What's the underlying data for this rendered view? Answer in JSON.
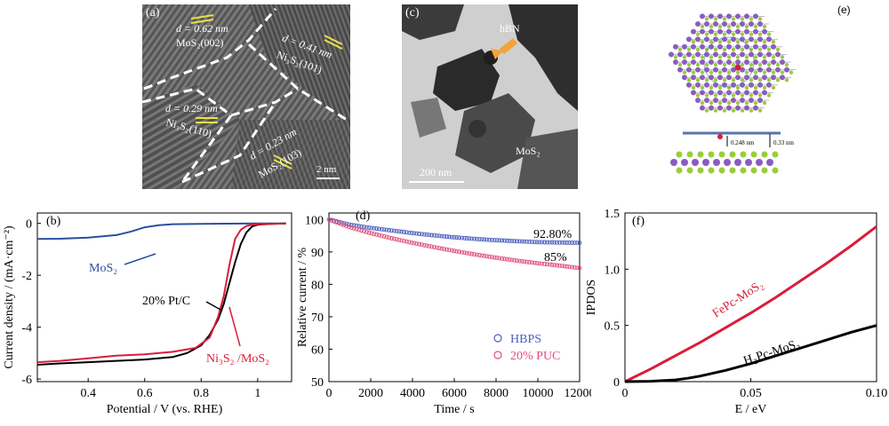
{
  "panels": {
    "a": {
      "label": "(a)"
    },
    "b": {
      "label": "(b)"
    },
    "c": {
      "label": "(c)"
    },
    "d": {
      "label": "(d)"
    },
    "e": {
      "label": "(e)"
    },
    "f": {
      "label": "(f)"
    }
  },
  "tem_a": {
    "annotations": [
      {
        "d": "d = 0.62 nm",
        "phase": "MoS₂(002)"
      },
      {
        "d": "d = 0.41 nm",
        "phase": "Ni₃S₂(101)"
      },
      {
        "d": "d = 0.29 nm",
        "phase": "Ni₃S₂(110)"
      },
      {
        "d": "d = 0.23 nm",
        "phase": "MoS₂(103)"
      }
    ],
    "scalebar": "2 nm"
  },
  "tem_c": {
    "arrow_label": "hBN",
    "region_label": "MoS₂",
    "scalebar": "200 nm"
  },
  "structure_e": {
    "dist1": "0.248 nm",
    "dist2": "0.33 nm"
  },
  "colors": {
    "blue": "#2b4fa0",
    "red": "#d81e3a",
    "black": "#000000",
    "hbps": "#4a5fbf",
    "puc": "#e0507a",
    "fepc": "#d81e3a",
    "h2pc": "#000000",
    "mo": "#8a5cc2",
    "s": "#9ccc3a",
    "arrow": "#f2a33a"
  },
  "chart_data": [
    {
      "id": "b",
      "type": "line",
      "xlabel": "Potential / V (vs. RHE)",
      "ylabel": "Current density / (mA·cm⁻²)",
      "xlim": [
        0.22,
        1.12
      ],
      "ylim": [
        -6.1,
        0.4
      ],
      "xticks": [
        0.4,
        0.6,
        0.8,
        1.0
      ],
      "yticks": [
        0,
        -2,
        -4,
        -6
      ],
      "series": [
        {
          "name": "MoS₂",
          "color": "blue",
          "x": [
            0.22,
            0.3,
            0.4,
            0.5,
            0.55,
            0.6,
            0.65,
            0.7,
            0.8,
            0.9,
            1.0,
            1.1
          ],
          "y": [
            -0.6,
            -0.59,
            -0.55,
            -0.45,
            -0.32,
            -0.15,
            -0.07,
            -0.03,
            -0.02,
            -0.01,
            0,
            0
          ]
        },
        {
          "name": "20% Pt/C",
          "color": "black",
          "x": [
            0.22,
            0.3,
            0.4,
            0.5,
            0.6,
            0.7,
            0.75,
            0.8,
            0.83,
            0.86,
            0.88,
            0.9,
            0.92,
            0.94,
            0.96,
            0.98,
            1.0,
            1.05,
            1.1
          ],
          "y": [
            -5.45,
            -5.4,
            -5.35,
            -5.3,
            -5.25,
            -5.15,
            -5.0,
            -4.7,
            -4.3,
            -3.7,
            -3.1,
            -2.3,
            -1.5,
            -0.8,
            -0.35,
            -0.12,
            -0.05,
            -0.02,
            0
          ]
        },
        {
          "name": "Ni₃S₂ /MoS₂",
          "color": "red",
          "x": [
            0.22,
            0.3,
            0.4,
            0.5,
            0.6,
            0.7,
            0.78,
            0.83,
            0.86,
            0.88,
            0.9,
            0.92,
            0.94,
            0.96,
            0.98,
            1.0,
            1.05,
            1.1
          ],
          "y": [
            -5.35,
            -5.3,
            -5.2,
            -5.1,
            -5.05,
            -4.95,
            -4.8,
            -4.4,
            -3.6,
            -2.8,
            -1.6,
            -0.6,
            -0.25,
            -0.1,
            -0.05,
            -0.03,
            -0.02,
            0
          ]
        }
      ],
      "annotations": [
        {
          "text": "MoS₂",
          "series": "blue"
        },
        {
          "text": "20% Pt/C",
          "series": "black"
        },
        {
          "text": "Ni₃S₂ /MoS₂",
          "series": "red"
        }
      ]
    },
    {
      "id": "d",
      "type": "scatter",
      "xlabel": "Time / s",
      "ylabel": "Relative current / %",
      "xlim": [
        0,
        12000
      ],
      "ylim": [
        50,
        102
      ],
      "xticks": [
        0,
        2000,
        4000,
        6000,
        8000,
        10000,
        12000
      ],
      "yticks": [
        50,
        60,
        70,
        80,
        90,
        100
      ],
      "series": [
        {
          "name": "HBPS",
          "color": "hbps",
          "x": [
            0,
            1000,
            2000,
            3000,
            4000,
            5000,
            6000,
            7000,
            8000,
            9000,
            10000,
            11000,
            12000
          ],
          "y": [
            100,
            98.4,
            97.4,
            96.6,
            95.8,
            95.1,
            94.5,
            94.0,
            93.6,
            93.3,
            93.0,
            92.9,
            92.8
          ]
        },
        {
          "name": "20% PUC",
          "color": "puc",
          "x": [
            0,
            1000,
            2000,
            3000,
            4000,
            5000,
            6000,
            7000,
            8000,
            9000,
            10000,
            11000,
            12000
          ],
          "y": [
            100,
            97.6,
            95.8,
            94.2,
            92.8,
            91.5,
            90.3,
            89.2,
            88.2,
            87.3,
            86.5,
            85.8,
            85.0
          ]
        }
      ],
      "end_labels": [
        "92.80%",
        "85%"
      ],
      "legend": [
        "HBPS",
        "20% PUC"
      ]
    },
    {
      "id": "f",
      "type": "line",
      "xlabel": "E / eV",
      "ylabel": "IPDOS",
      "xlim": [
        0,
        0.1
      ],
      "ylim": [
        0,
        1.5
      ],
      "xticks": [
        0,
        0.05,
        0.1
      ],
      "xticklabels": [
        "0",
        "0.05",
        "0.10"
      ],
      "yticks": [
        0,
        0.5,
        1.0,
        1.5
      ],
      "yticklabels": [
        "0",
        "0.5",
        "1.0",
        "1.5"
      ],
      "series": [
        {
          "name": "FePc-MoS₂",
          "color": "fepc",
          "x": [
            0,
            0.01,
            0.02,
            0.03,
            0.04,
            0.05,
            0.06,
            0.07,
            0.08,
            0.09,
            0.1
          ],
          "y": [
            0,
            0.11,
            0.23,
            0.35,
            0.48,
            0.61,
            0.75,
            0.9,
            1.05,
            1.21,
            1.38
          ]
        },
        {
          "name": "H₂Pc-MoS₂",
          "color": "h2pc",
          "x": [
            0,
            0.01,
            0.02,
            0.025,
            0.03,
            0.04,
            0.05,
            0.06,
            0.07,
            0.08,
            0.09,
            0.1
          ],
          "y": [
            0,
            0.003,
            0.015,
            0.03,
            0.05,
            0.1,
            0.16,
            0.23,
            0.3,
            0.37,
            0.44,
            0.5
          ]
        }
      ],
      "annotations": [
        {
          "text": "FePc-MoS₂",
          "series": "fepc"
        },
        {
          "text": "H₂Pc-MoS₂",
          "series": "h2pc"
        }
      ]
    }
  ]
}
